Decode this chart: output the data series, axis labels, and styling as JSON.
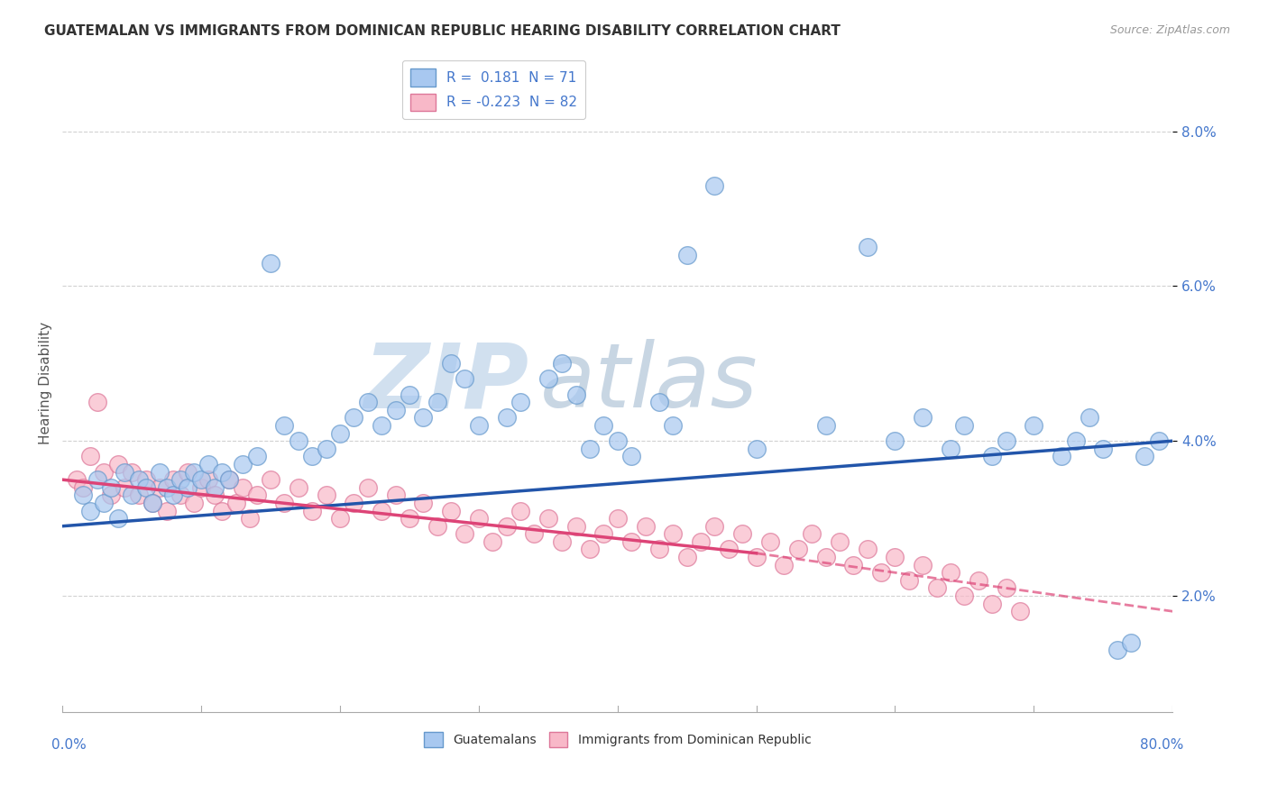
{
  "title": "GUATEMALAN VS IMMIGRANTS FROM DOMINICAN REPUBLIC HEARING DISABILITY CORRELATION CHART",
  "source": "Source: ZipAtlas.com",
  "ylabel": "Hearing Disability",
  "xlim": [
    0.0,
    80.0
  ],
  "ylim": [
    0.5,
    9.0
  ],
  "yticks": [
    2.0,
    4.0,
    6.0,
    8.0
  ],
  "ytick_labels": [
    "2.0%",
    "4.0%",
    "6.0%",
    "8.0%"
  ],
  "legend1_r": "0.181",
  "legend1_n": "71",
  "legend2_r": "-0.223",
  "legend2_n": "82",
  "blue_color": "#A8C8F0",
  "blue_edge_color": "#6699CC",
  "pink_color": "#F8B8C8",
  "pink_edge_color": "#DD7799",
  "blue_line_color": "#2255AA",
  "pink_line_color": "#DD4477",
  "watermark_zip_color": "#CCDDEE",
  "watermark_atlas_color": "#BBCCDD",
  "grid_color": "#CCCCCC",
  "title_color": "#333333",
  "source_color": "#999999",
  "axis_label_color": "#4477CC",
  "ylabel_color": "#555555",
  "blue_x": [
    1.5,
    2.0,
    2.5,
    3.0,
    3.5,
    4.0,
    4.5,
    5.0,
    5.5,
    6.0,
    6.5,
    7.0,
    7.5,
    8.0,
    8.5,
    9.0,
    9.5,
    10.0,
    10.5,
    11.0,
    11.5,
    12.0,
    13.0,
    14.0,
    15.0,
    16.0,
    17.0,
    18.0,
    19.0,
    20.0,
    21.0,
    22.0,
    23.0,
    24.0,
    25.0,
    26.0,
    27.0,
    28.0,
    29.0,
    30.0,
    32.0,
    33.0,
    35.0,
    36.0,
    37.0,
    38.0,
    39.0,
    40.0,
    41.0,
    43.0,
    44.0,
    45.0,
    47.0,
    50.0,
    55.0,
    58.0,
    60.0,
    62.0,
    64.0,
    65.0,
    67.0,
    68.0,
    70.0,
    72.0,
    73.0,
    74.0,
    75.0,
    76.0,
    77.0,
    78.0,
    79.0
  ],
  "blue_y": [
    3.3,
    3.1,
    3.5,
    3.2,
    3.4,
    3.0,
    3.6,
    3.3,
    3.5,
    3.4,
    3.2,
    3.6,
    3.4,
    3.3,
    3.5,
    3.4,
    3.6,
    3.5,
    3.7,
    3.4,
    3.6,
    3.5,
    3.7,
    3.8,
    6.3,
    4.2,
    4.0,
    3.8,
    3.9,
    4.1,
    4.3,
    4.5,
    4.2,
    4.4,
    4.6,
    4.3,
    4.5,
    5.0,
    4.8,
    4.2,
    4.3,
    4.5,
    4.8,
    5.0,
    4.6,
    3.9,
    4.2,
    4.0,
    3.8,
    4.5,
    4.2,
    6.4,
    7.3,
    3.9,
    4.2,
    6.5,
    4.0,
    4.3,
    3.9,
    4.2,
    3.8,
    4.0,
    4.2,
    3.8,
    4.0,
    4.3,
    3.9,
    1.3,
    1.4,
    3.8,
    4.0
  ],
  "pink_x": [
    1.0,
    1.5,
    2.0,
    2.5,
    3.0,
    3.5,
    4.0,
    4.5,
    5.0,
    5.5,
    6.0,
    6.5,
    7.0,
    7.5,
    8.0,
    8.5,
    9.0,
    9.5,
    10.0,
    10.5,
    11.0,
    11.5,
    12.0,
    12.5,
    13.0,
    13.5,
    14.0,
    15.0,
    16.0,
    17.0,
    18.0,
    19.0,
    20.0,
    21.0,
    22.0,
    23.0,
    24.0,
    25.0,
    26.0,
    27.0,
    28.0,
    29.0,
    30.0,
    31.0,
    32.0,
    33.0,
    34.0,
    35.0,
    36.0,
    37.0,
    38.0,
    39.0,
    40.0,
    41.0,
    42.0,
    43.0,
    44.0,
    45.0,
    46.0,
    47.0,
    48.0,
    49.0,
    50.0,
    51.0,
    52.0,
    53.0,
    54.0,
    55.0,
    56.0,
    57.0,
    58.0,
    59.0,
    60.0,
    61.0,
    62.0,
    63.0,
    64.0,
    65.0,
    66.0,
    67.0,
    68.0,
    69.0
  ],
  "pink_y": [
    3.5,
    3.4,
    3.8,
    4.5,
    3.6,
    3.3,
    3.7,
    3.4,
    3.6,
    3.3,
    3.5,
    3.2,
    3.4,
    3.1,
    3.5,
    3.3,
    3.6,
    3.2,
    3.4,
    3.5,
    3.3,
    3.1,
    3.5,
    3.2,
    3.4,
    3.0,
    3.3,
    3.5,
    3.2,
    3.4,
    3.1,
    3.3,
    3.0,
    3.2,
    3.4,
    3.1,
    3.3,
    3.0,
    3.2,
    2.9,
    3.1,
    2.8,
    3.0,
    2.7,
    2.9,
    3.1,
    2.8,
    3.0,
    2.7,
    2.9,
    2.6,
    2.8,
    3.0,
    2.7,
    2.9,
    2.6,
    2.8,
    2.5,
    2.7,
    2.9,
    2.6,
    2.8,
    2.5,
    2.7,
    2.4,
    2.6,
    2.8,
    2.5,
    2.7,
    2.4,
    2.6,
    2.3,
    2.5,
    2.2,
    2.4,
    2.1,
    2.3,
    2.0,
    2.2,
    1.9,
    2.1,
    1.8
  ],
  "blue_trend_start_x": 0.0,
  "blue_trend_end_x": 80.0,
  "blue_trend_start_y": 2.9,
  "blue_trend_end_y": 4.0,
  "pink_solid_start_x": 0.0,
  "pink_solid_end_x": 50.0,
  "pink_solid_start_y": 3.5,
  "pink_solid_end_y": 2.55,
  "pink_dash_start_x": 50.0,
  "pink_dash_end_x": 80.0,
  "pink_dash_start_y": 2.55,
  "pink_dash_end_y": 1.8
}
